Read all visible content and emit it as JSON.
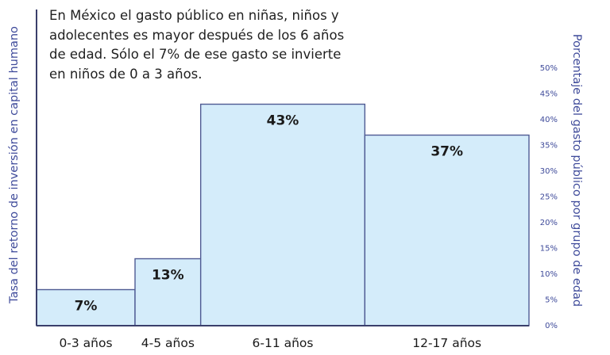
{
  "chart_data": {
    "type": "bar",
    "title": "",
    "annotation_lines": [
      "En México el gasto público en niñas, niños y",
      "adolecentes es mayor después de los 6 años",
      "de edad. Sólo el 7% de ese gasto se invierte",
      "en niños de 0 a 3 años."
    ],
    "categories": [
      "0-3 años",
      "4-5 años",
      "6-11 años",
      "12-17 años"
    ],
    "values": [
      7,
      13,
      43,
      37
    ],
    "data_labels": [
      "7%",
      "13%",
      "43%",
      "37%"
    ],
    "bar_widths_years": [
      3,
      2,
      5,
      5
    ],
    "ylabel_left": "Tasa del retorno de inversión en capital humano",
    "ylabel_right": "Porcentaje del gasto público por grupo de edad",
    "ylim": [
      0,
      50
    ],
    "right_ticks": [
      0,
      5,
      10,
      15,
      20,
      25,
      30,
      35,
      40,
      45,
      50
    ],
    "right_tick_labels": [
      "0%",
      "5%",
      "10%",
      "15%",
      "20%",
      "25%",
      "30%",
      "35%",
      "40%",
      "45%",
      "50%"
    ],
    "grid": false,
    "colors": {
      "bar_fill": "#d4ecfa",
      "bar_stroke": "#4f5b93",
      "axis": "#3a3f6b",
      "right_axis_text": "#3e4a9a",
      "label_text": "#1a1a1a"
    }
  }
}
